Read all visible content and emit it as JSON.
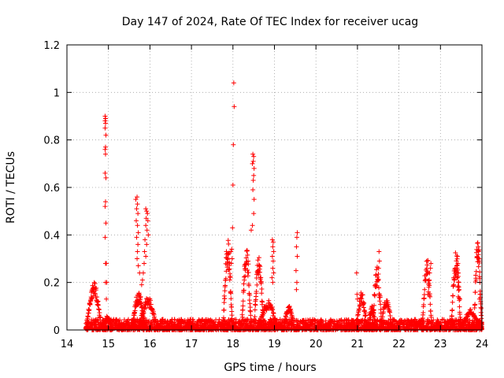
{
  "chart_data": {
    "type": "scatter",
    "title": "Day 147 of 2024, Rate Of TEC Index for receiver ucag",
    "xlabel": "GPS time / hours",
    "ylabel": "ROTI / TECUs",
    "xlim": [
      14,
      24
    ],
    "ylim": [
      0,
      1.2
    ],
    "x_ticks": [
      14,
      15,
      16,
      17,
      18,
      19,
      20,
      21,
      22,
      23,
      24
    ],
    "y_ticks": [
      0,
      0.2,
      0.4,
      0.6,
      0.8,
      1,
      1.2
    ],
    "x_tick_labels": [
      "14",
      "15",
      "16",
      "17",
      "18",
      "19",
      "20",
      "21",
      "22",
      "23",
      "24"
    ],
    "y_tick_labels": [
      "0",
      "0.2",
      "0.4",
      "0.6",
      "0.8",
      "1",
      "1.2"
    ],
    "grid": true,
    "marker": "+",
    "series": [
      {
        "name": "ucag",
        "color": "#ff0000",
        "background": {
          "x_start": 14.45,
          "x_end": 24.0,
          "low": 0.0,
          "high": 0.045,
          "density_per_hour": 260
        },
        "arcs": [
          {
            "start": 14.45,
            "end": 14.85,
            "peak": 0.18,
            "n": 70
          },
          {
            "start": 14.85,
            "end": 15.1,
            "peak": 0.05,
            "n": 30
          },
          {
            "start": 15.55,
            "end": 15.9,
            "peak": 0.14,
            "n": 70
          },
          {
            "start": 15.7,
            "end": 16.2,
            "peak": 0.12,
            "n": 70
          },
          {
            "start": 17.75,
            "end": 18.0,
            "peak": 0.34,
            "n": 60
          },
          {
            "start": 18.2,
            "end": 18.45,
            "peak": 0.32,
            "n": 55
          },
          {
            "start": 18.5,
            "end": 18.75,
            "peak": 0.29,
            "n": 55
          },
          {
            "start": 18.6,
            "end": 19.1,
            "peak": 0.11,
            "n": 60
          },
          {
            "start": 19.2,
            "end": 19.5,
            "peak": 0.09,
            "n": 45
          },
          {
            "start": 20.95,
            "end": 21.25,
            "peak": 0.14,
            "n": 50
          },
          {
            "start": 21.25,
            "end": 21.45,
            "peak": 0.09,
            "n": 35
          },
          {
            "start": 21.35,
            "end": 21.6,
            "peak": 0.24,
            "n": 45
          },
          {
            "start": 21.55,
            "end": 21.85,
            "peak": 0.12,
            "n": 45
          },
          {
            "start": 22.55,
            "end": 22.8,
            "peak": 0.28,
            "n": 45
          },
          {
            "start": 23.25,
            "end": 23.5,
            "peak": 0.3,
            "n": 50
          },
          {
            "start": 23.45,
            "end": 24.0,
            "peak": 0.07,
            "n": 60
          },
          {
            "start": 23.8,
            "end": 24.0,
            "peak": 0.35,
            "n": 45
          }
        ],
        "points": [
          [
            14.92,
            0.9
          ],
          [
            14.93,
            0.89
          ],
          [
            14.92,
            0.88
          ],
          [
            14.93,
            0.87
          ],
          [
            14.92,
            0.85
          ],
          [
            14.94,
            0.82
          ],
          [
            14.93,
            0.77
          ],
          [
            14.92,
            0.76
          ],
          [
            14.93,
            0.74
          ],
          [
            14.92,
            0.66
          ],
          [
            14.94,
            0.64
          ],
          [
            14.93,
            0.54
          ],
          [
            14.92,
            0.52
          ],
          [
            14.94,
            0.45
          ],
          [
            14.92,
            0.39
          ],
          [
            14.93,
            0.28
          ],
          [
            14.95,
            0.28
          ],
          [
            14.93,
            0.2
          ],
          [
            14.96,
            0.2
          ],
          [
            14.95,
            0.13
          ],
          [
            15.66,
            0.55
          ],
          [
            15.69,
            0.56
          ],
          [
            15.7,
            0.53
          ],
          [
            15.68,
            0.51
          ],
          [
            15.71,
            0.49
          ],
          [
            15.67,
            0.46
          ],
          [
            15.7,
            0.44
          ],
          [
            15.72,
            0.41
          ],
          [
            15.68,
            0.39
          ],
          [
            15.71,
            0.36
          ],
          [
            15.7,
            0.33
          ],
          [
            15.69,
            0.3
          ],
          [
            15.72,
            0.27
          ],
          [
            15.75,
            0.24
          ],
          [
            15.9,
            0.51
          ],
          [
            15.92,
            0.5
          ],
          [
            15.94,
            0.49
          ],
          [
            15.91,
            0.47
          ],
          [
            15.95,
            0.46
          ],
          [
            15.9,
            0.44
          ],
          [
            15.93,
            0.42
          ],
          [
            15.96,
            0.4
          ],
          [
            15.88,
            0.38
          ],
          [
            15.92,
            0.36
          ],
          [
            15.87,
            0.33
          ],
          [
            15.9,
            0.31
          ],
          [
            15.86,
            0.28
          ],
          [
            15.84,
            0.24
          ],
          [
            15.82,
            0.21
          ],
          [
            15.8,
            0.19
          ],
          [
            18.02,
            1.04
          ],
          [
            18.03,
            0.94
          ],
          [
            18.01,
            0.78
          ],
          [
            18.0,
            0.61
          ],
          [
            17.99,
            0.43
          ],
          [
            17.97,
            0.34
          ],
          [
            17.95,
            0.33
          ],
          [
            17.98,
            0.3
          ],
          [
            17.96,
            0.28
          ],
          [
            18.48,
            0.74
          ],
          [
            18.5,
            0.73
          ],
          [
            18.49,
            0.71
          ],
          [
            18.47,
            0.7
          ],
          [
            18.51,
            0.68
          ],
          [
            18.5,
            0.65
          ],
          [
            18.49,
            0.63
          ],
          [
            18.48,
            0.59
          ],
          [
            18.51,
            0.55
          ],
          [
            18.5,
            0.49
          ],
          [
            18.47,
            0.44
          ],
          [
            18.44,
            0.42
          ],
          [
            18.95,
            0.38
          ],
          [
            18.97,
            0.37
          ],
          [
            18.96,
            0.35
          ],
          [
            18.98,
            0.33
          ],
          [
            18.95,
            0.31
          ],
          [
            18.97,
            0.29
          ],
          [
            18.96,
            0.26
          ],
          [
            18.98,
            0.24
          ],
          [
            18.94,
            0.22
          ],
          [
            18.96,
            0.2
          ],
          [
            19.55,
            0.41
          ],
          [
            19.54,
            0.39
          ],
          [
            19.53,
            0.35
          ],
          [
            19.55,
            0.31
          ],
          [
            19.52,
            0.25
          ],
          [
            19.54,
            0.2
          ],
          [
            19.53,
            0.17
          ],
          [
            20.98,
            0.24
          ],
          [
            20.99,
            0.15
          ],
          [
            21.0,
            0.13
          ],
          [
            21.52,
            0.33
          ],
          [
            21.53,
            0.29
          ],
          [
            21.51,
            0.26
          ],
          [
            22.77,
            0.28
          ],
          [
            22.76,
            0.26
          ],
          [
            22.74,
            0.24
          ],
          [
            22.73,
            0.21
          ],
          [
            22.72,
            0.18
          ],
          [
            22.71,
            0.16
          ],
          [
            22.7,
            0.15
          ],
          [
            23.41,
            0.31
          ],
          [
            23.42,
            0.28
          ],
          [
            23.4,
            0.26
          ],
          [
            23.43,
            0.24
          ],
          [
            23.41,
            0.22
          ],
          [
            23.44,
            0.2
          ],
          [
            23.42,
            0.18
          ],
          [
            23.45,
            0.17
          ],
          [
            23.43,
            0.14
          ],
          [
            23.47,
            0.13
          ],
          [
            23.39,
            0.27
          ],
          [
            23.91,
            0.35
          ],
          [
            23.92,
            0.33
          ],
          [
            23.93,
            0.29
          ],
          [
            23.95,
            0.2
          ],
          [
            23.96,
            0.15
          ],
          [
            23.94,
            0.13
          ],
          [
            23.97,
            0.11
          ],
          [
            23.98,
            0.09
          ]
        ]
      }
    ]
  }
}
